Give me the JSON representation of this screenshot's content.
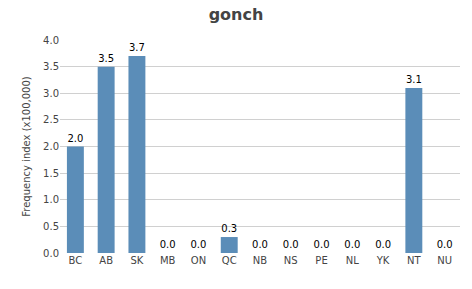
{
  "chart_data": {
    "type": "bar",
    "title": "gonch",
    "categories": [
      "BC",
      "AB",
      "SK",
      "MB",
      "ON",
      "QC",
      "NB",
      "NS",
      "PE",
      "NL",
      "YK",
      "NT",
      "NU"
    ],
    "values": [
      2.0,
      3.5,
      3.7,
      0.0,
      0.0,
      0.3,
      0.0,
      0.0,
      0.0,
      0.0,
      0.0,
      3.1,
      0.0
    ],
    "value_labels": [
      "2.0",
      "3.5",
      "3.7",
      "0.0",
      "0.0",
      "0.3",
      "0.0",
      "0.0",
      "0.0",
      "0.0",
      "0.0",
      "3.1",
      "0.0"
    ],
    "data_labels": true,
    "color": "#5b8db8",
    "ylabel": "Frequency index (x100,000)",
    "ylim": [
      0,
      4.0
    ],
    "yticks": [
      {
        "value": 0,
        "label": "0.0"
      },
      0.5,
      {
        "value": 1,
        "label": "1.0"
      },
      1.5,
      {
        "value": 2,
        "label": "2.0"
      },
      2.5,
      {
        "value": 3,
        "label": "3.0"
      },
      3.5,
      {
        "value": 4,
        "label": "4.0"
      }
    ],
    "grid": true
  }
}
